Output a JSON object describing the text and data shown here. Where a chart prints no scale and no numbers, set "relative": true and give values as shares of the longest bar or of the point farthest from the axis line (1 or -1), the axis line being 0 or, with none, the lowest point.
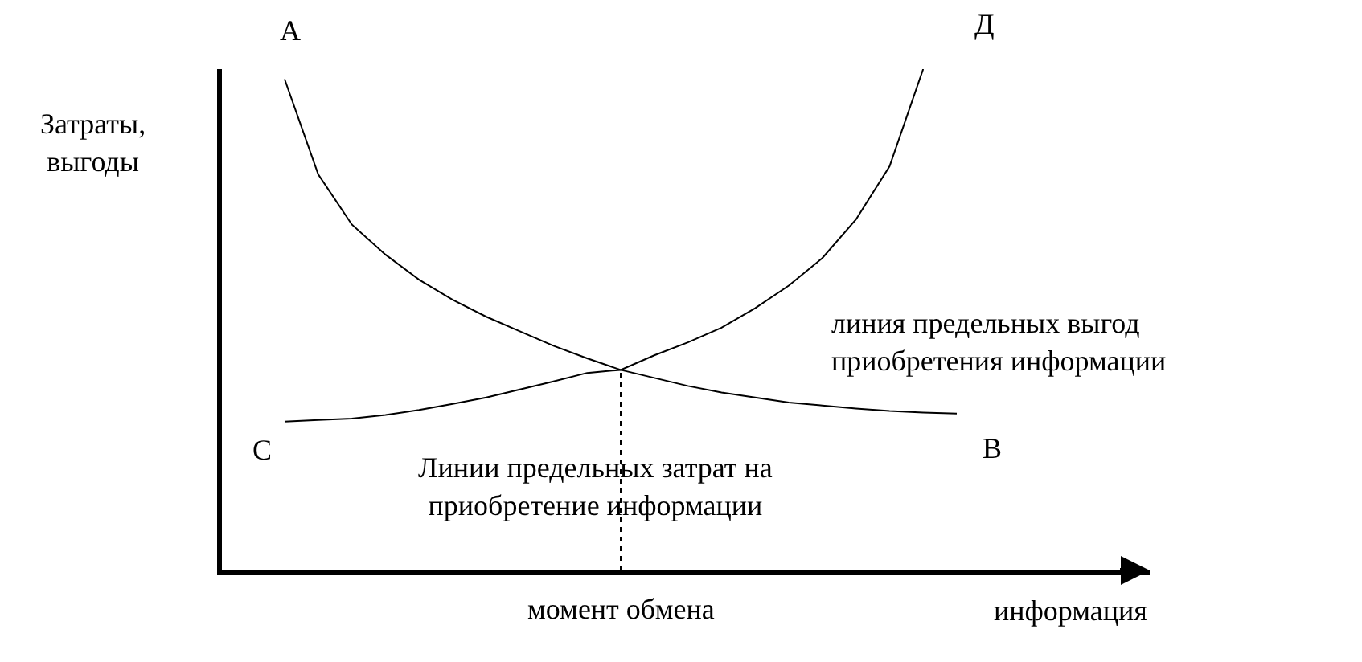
{
  "chart_data": {
    "type": "line",
    "relative": true,
    "ylabel": "Затраты,\nвыгоды",
    "xlabel": "информация",
    "categories": [
      null,
      null,
      null,
      null,
      null,
      null,
      null,
      null,
      null,
      null,
      null,
      null,
      null,
      null,
      null,
      null,
      null,
      null,
      null,
      null,
      null
    ],
    "series": [
      {
        "name": "линия предельных выгод\nприобретения информации",
        "color": "#000000",
        "values": [
          0.98,
          0.79,
          0.69,
          0.63,
          0.58,
          0.54,
          0.506,
          0.477,
          0.448,
          0.423,
          0.4,
          0.384,
          0.368,
          0.355,
          0.345,
          0.335,
          0.329,
          0.323,
          0.318,
          0.315,
          0.313
        ]
      },
      {
        "name": "Линии предельных затрат на\nприобретение информации",
        "color": "#000000",
        "values": [
          0.297,
          0.3,
          0.303,
          0.31,
          0.32,
          0.332,
          0.345,
          0.361,
          0.377,
          0.394,
          0.4,
          0.429,
          0.455,
          0.484,
          0.523,
          0.568,
          0.623,
          0.7,
          0.806,
          1.0,
          null
        ]
      }
    ],
    "annotations": [
      "А",
      "В",
      "С",
      "Д",
      "момент обмена"
    ],
    "grid": false,
    "legend": false,
    "marker": "none",
    "line_style": "solid"
  }
}
